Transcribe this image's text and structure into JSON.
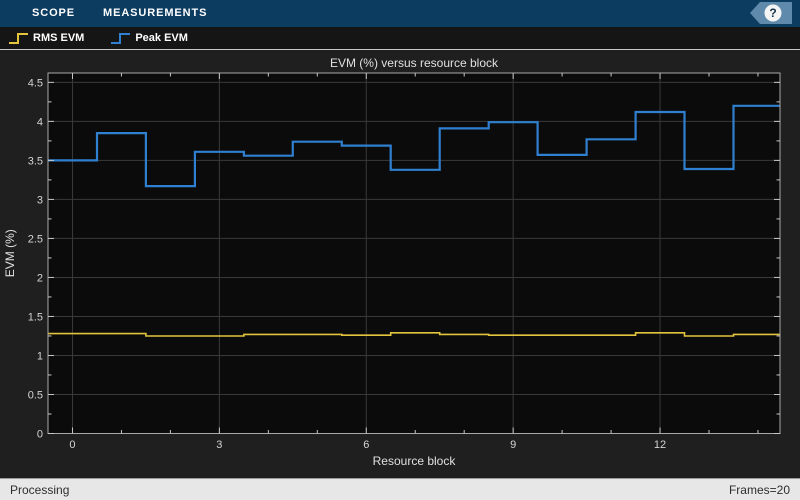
{
  "toolbar": {
    "tabs": [
      {
        "label": "SCOPE"
      },
      {
        "label": "MEASUREMENTS"
      }
    ],
    "help_label": "?"
  },
  "legend": {
    "items": [
      {
        "label": "RMS EVM",
        "color": "#e3c53d"
      },
      {
        "label": "Peak EVM",
        "color": "#2f80d0"
      }
    ]
  },
  "chart_data": {
    "type": "line",
    "subtype": "stairs",
    "title": "EVM (%) versus resource block",
    "xlabel": "Resource block",
    "ylabel": "EVM (%)",
    "xlim": [
      -0.5,
      14.45
    ],
    "ylim": [
      0,
      4.62
    ],
    "xticks": [
      0,
      3,
      6,
      9,
      12
    ],
    "xminorticks": [
      1,
      2,
      4,
      5,
      7,
      8,
      10,
      11,
      13,
      14
    ],
    "yticks": [
      0,
      0.5,
      1,
      1.5,
      2,
      2.5,
      3,
      3.5,
      4,
      4.5
    ],
    "yminorticks": [
      0.25,
      0.75,
      1.25,
      1.75,
      2.25,
      2.75,
      3.25,
      3.75,
      4.25
    ],
    "grid": true,
    "legend_position": "top strip above axes",
    "categories": [
      0,
      1,
      2,
      3,
      4,
      5,
      6,
      7,
      8,
      9,
      10,
      11,
      12,
      13,
      14
    ],
    "series": [
      {
        "name": "RMS EVM",
        "color": "#e3c53d",
        "values": [
          1.28,
          1.28,
          1.25,
          1.25,
          1.27,
          1.27,
          1.26,
          1.29,
          1.27,
          1.26,
          1.26,
          1.26,
          1.29,
          1.25,
          1.27
        ]
      },
      {
        "name": "Peak EVM",
        "color": "#2f80d0",
        "values": [
          3.5,
          3.85,
          3.17,
          3.61,
          3.56,
          3.74,
          3.69,
          3.38,
          3.91,
          3.99,
          3.57,
          3.77,
          4.12,
          3.39,
          4.2
        ]
      }
    ]
  },
  "status_bar": {
    "left": "Processing",
    "right": "Frames=20"
  },
  "colors": {
    "toolbar_bg": "#0d3c61",
    "help_tag_bg": "#5f8aab",
    "legend_bg": "#151515",
    "figure_bg": "#1f1f1f",
    "plot_bg": "#0b0b0b",
    "grid": "#3a3a3a",
    "axis_border": "#a8a8a8",
    "tick": "#c8c8c8",
    "tick_label": "#d4d4d4",
    "axis_label": "#e0e0e0",
    "status_bg": "#e7e7e7"
  }
}
